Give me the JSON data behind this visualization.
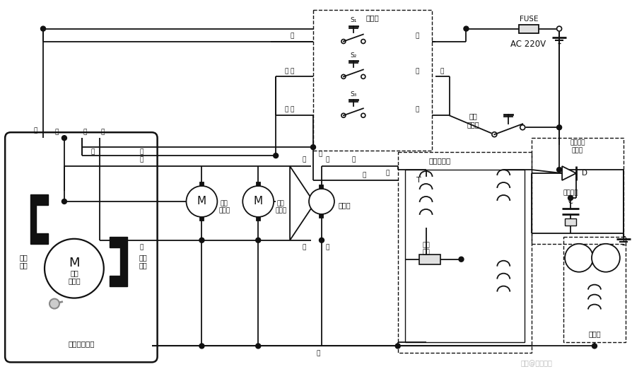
{
  "bg_color": "#ffffff",
  "line_color": "#111111",
  "text_color": "#111111",
  "watermark": "头条@维修人家",
  "labels": {
    "door_switch": "门开关",
    "fuse_label": "FUSE",
    "ac_label": "AC 220V",
    "temp_ctrl": "温度\n控制器",
    "hv_transformer": "高压变压器",
    "hv_rectifier": "高压整流\n二极管",
    "hv_cap": "高压电容",
    "hv_fuse_body": "高压\n熔体",
    "magnetron": "磁控管",
    "mech_ctrl": "机械控制装置",
    "timer_motor": "定时\n电动机",
    "timer_switch": "定时\n开关",
    "power_switch": "火力\n开关",
    "turntable": "转盘\n电动机",
    "fan": "风扇\n电动机",
    "lamp": "照明灯",
    "S1": "S₁",
    "S2": "S₂",
    "S3": "S₃",
    "T": "T",
    "D": "D",
    "C": "C",
    "M": "M",
    "brown": "棕",
    "red": "红",
    "blue": "蓝",
    "yellow": "黄",
    "black": "黑",
    "white": "白"
  }
}
